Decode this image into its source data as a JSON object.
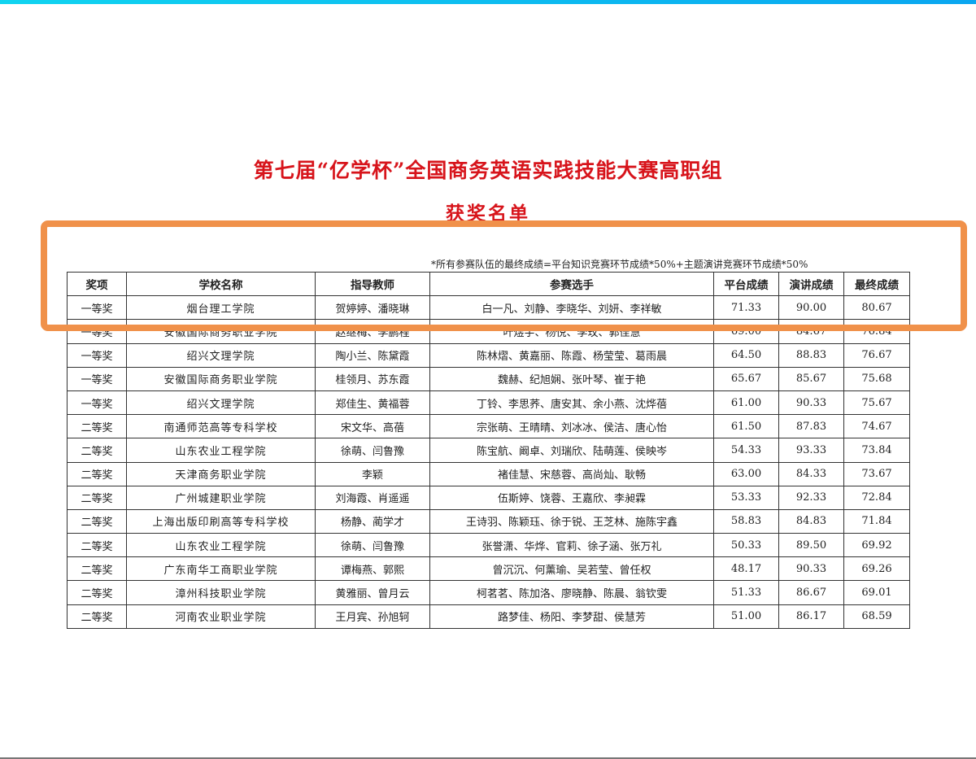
{
  "document": {
    "title": "第七届“亿学杯”全国商务英语实践技能大赛高职组",
    "subtitle": "获奖名单",
    "note": "*所有参赛队伍的最终成绩=平台知识竞赛环节成绩*50%+主题演讲竞赛环节成绩*50%",
    "headers": [
      "奖项",
      "学校名称",
      "指导教师",
      "参赛选手",
      "平台成绩",
      "演讲成绩",
      "最终成绩"
    ],
    "rows": [
      [
        "一等奖",
        "烟台理工学院",
        "贺婷婷、潘晓琳",
        "白一凡、刘静、李晓华、刘妍、李祥敏",
        "71.33",
        "90.00",
        "80.67"
      ],
      [
        "一等奖",
        "安徽国际商务职业学院",
        "赵继梅、李鹏程",
        "叶煜宇、杨悦、李玫、郭佳慧",
        "69.00",
        "84.67",
        "76.84"
      ],
      [
        "一等奖",
        "绍兴文理学院",
        "陶小兰、陈黛霞",
        "陈林熠、黄嘉丽、陈霞、杨莹莹、葛雨晨",
        "64.50",
        "88.83",
        "76.67"
      ],
      [
        "一等奖",
        "安徽国际商务职业学院",
        "桂领月、苏东霞",
        "魏赫、纪旭娴、张叶琴、崔于艳",
        "65.67",
        "85.67",
        "75.68"
      ],
      [
        "一等奖",
        "绍兴文理学院",
        "郑佳生、黄福蓉",
        "丁铃、李思荞、唐安其、余小燕、沈烨蓓",
        "61.00",
        "90.33",
        "75.67"
      ],
      [
        "二等奖",
        "南通师范高等专科学校",
        "宋文华、高蓓",
        "宗张萌、王晴晴、刘冰冰、侯洁、唐心怡",
        "61.50",
        "87.83",
        "74.67"
      ],
      [
        "二等奖",
        "山东农业工程学院",
        "徐萌、闫鲁豫",
        "陈宝航、阚卓、刘瑞欣、陆萌莲、侯映岑",
        "54.33",
        "93.33",
        "73.84"
      ],
      [
        "二等奖",
        "天津商务职业学院",
        "李颖",
        "褚佳慧、宋慈蓉、高尚灿、耿畅",
        "63.00",
        "84.33",
        "73.67"
      ],
      [
        "二等奖",
        "广州城建职业学院",
        "刘海霞、肖遥遥",
        "伍斯婷、饶蓉、王嘉欣、李昶霖",
        "53.33",
        "92.33",
        "72.84"
      ],
      [
        "二等奖",
        "上海出版印刷高等专科学校",
        "杨静、蔺学才",
        "王诗羽、陈颖珏、徐于锐、王芝林、施陈宇鑫",
        "58.83",
        "84.83",
        "71.84"
      ],
      [
        "二等奖",
        "山东农业工程学院",
        "徐萌、闫鲁豫",
        "张誉潇、华烨、官莉、徐子涵、张万礼",
        "50.33",
        "89.50",
        "69.92"
      ],
      [
        "二等奖",
        "广东南华工商职业学院",
        "谭梅燕、郭熙",
        "曾沉沉、何薰瑜、吴若莹、曾任权",
        "48.17",
        "90.33",
        "69.26"
      ],
      [
        "二等奖",
        "漳州科技职业学院",
        "黄雅丽、曾月云",
        "柯茗茗、陈加洛、廖晓静、陈晨、翁钦雯",
        "51.33",
        "86.67",
        "69.01"
      ],
      [
        "二等奖",
        "河南农业职业学院",
        "王月宾、孙旭轲",
        "路梦佳、杨阳、李梦甜、侯慧芳",
        "51.00",
        "86.17",
        "68.59"
      ]
    ]
  },
  "colors": {
    "title": "#d7141b",
    "highlight_box": "#f0914a",
    "top_bar": "#0aa6f0"
  }
}
